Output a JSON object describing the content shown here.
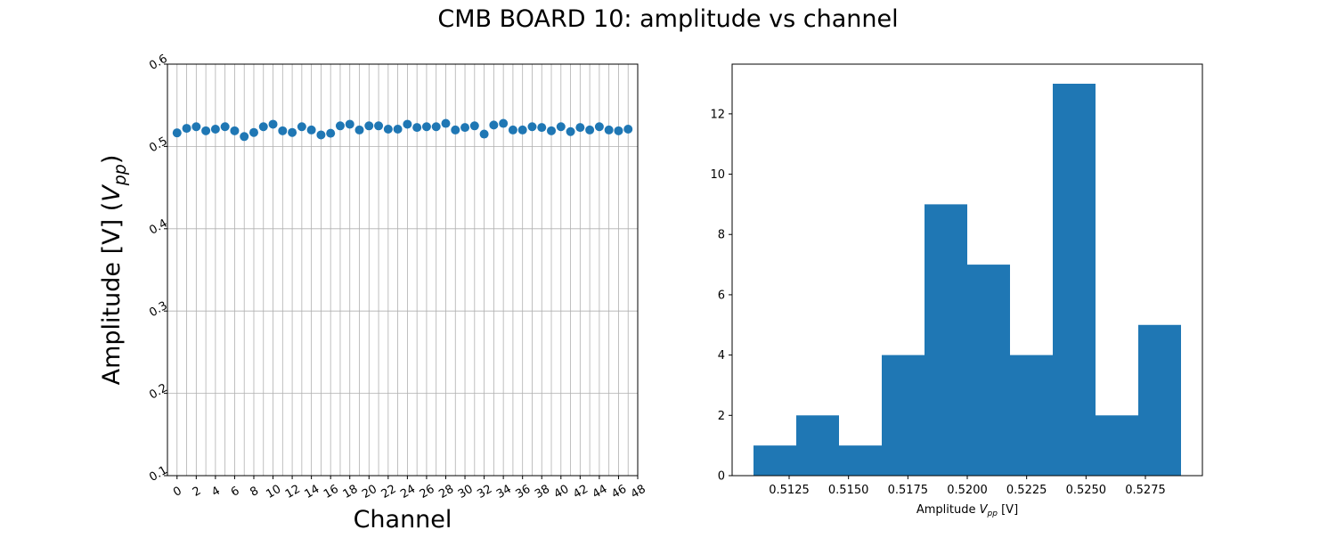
{
  "figure": {
    "title": "CMB BOARD 10: amplitude vs channel"
  },
  "colors": {
    "marker": "#1f77b4",
    "bar": "#1f77b4",
    "grid": "#b0b0b0",
    "axes": "#000000"
  },
  "chart_data": [
    {
      "type": "scatter",
      "xlabel": "Channel",
      "ylabel_main": "Amplitude [V] (",
      "ylabel_var": "V",
      "ylabel_sub": "pp",
      "ylabel_end": ")",
      "xlim": [
        -1,
        48
      ],
      "ylim": [
        0.1,
        0.6
      ],
      "xticks": [
        "0",
        "2",
        "4",
        "6",
        "8",
        "10",
        "12",
        "14",
        "16",
        "18",
        "20",
        "22",
        "24",
        "26",
        "28",
        "30",
        "32",
        "34",
        "36",
        "38",
        "40",
        "42",
        "44",
        "46",
        "48"
      ],
      "yticks": [
        "0.1",
        "0.2",
        "0.3",
        "0.4",
        "0.5",
        "0.6"
      ],
      "grid": true,
      "x": [
        0,
        1,
        2,
        3,
        4,
        5,
        6,
        7,
        8,
        9,
        10,
        11,
        12,
        13,
        14,
        15,
        16,
        17,
        18,
        19,
        20,
        21,
        22,
        23,
        24,
        25,
        26,
        27,
        28,
        29,
        30,
        31,
        32,
        33,
        34,
        35,
        36,
        37,
        38,
        39,
        40,
        41,
        42,
        43,
        44,
        45,
        46,
        47
      ],
      "y": [
        0.5165,
        0.522,
        0.524,
        0.519,
        0.521,
        0.524,
        0.519,
        0.512,
        0.517,
        0.524,
        0.527,
        0.519,
        0.517,
        0.524,
        0.52,
        0.514,
        0.516,
        0.525,
        0.527,
        0.52,
        0.525,
        0.525,
        0.521,
        0.521,
        0.527,
        0.523,
        0.524,
        0.524,
        0.528,
        0.52,
        0.523,
        0.525,
        0.515,
        0.526,
        0.528,
        0.52,
        0.52,
        0.524,
        0.523,
        0.519,
        0.524,
        0.518,
        0.523,
        0.52,
        0.524,
        0.52,
        0.519,
        0.521
      ]
    },
    {
      "type": "bar",
      "subtype": "histogram",
      "xlabel_main": "Amplitude ",
      "xlabel_var": "V",
      "xlabel_sub": "pp",
      "xlabel_end": " [V]",
      "bin_edges": [
        0.511,
        0.5128,
        0.5146,
        0.5164,
        0.5182,
        0.52,
        0.5218,
        0.5236,
        0.5254,
        0.5272,
        0.529
      ],
      "counts": [
        1,
        2,
        1,
        4,
        9,
        7,
        4,
        13,
        2,
        5
      ],
      "xlim": [
        0.5101,
        0.5299
      ],
      "ylim": [
        0,
        13.65
      ],
      "xticks": [
        "0.5125",
        "0.5150",
        "0.5175",
        "0.5200",
        "0.5225",
        "0.5250",
        "0.5275"
      ],
      "yticks": [
        "0",
        "2",
        "4",
        "6",
        "8",
        "10",
        "12"
      ],
      "grid": false
    }
  ]
}
